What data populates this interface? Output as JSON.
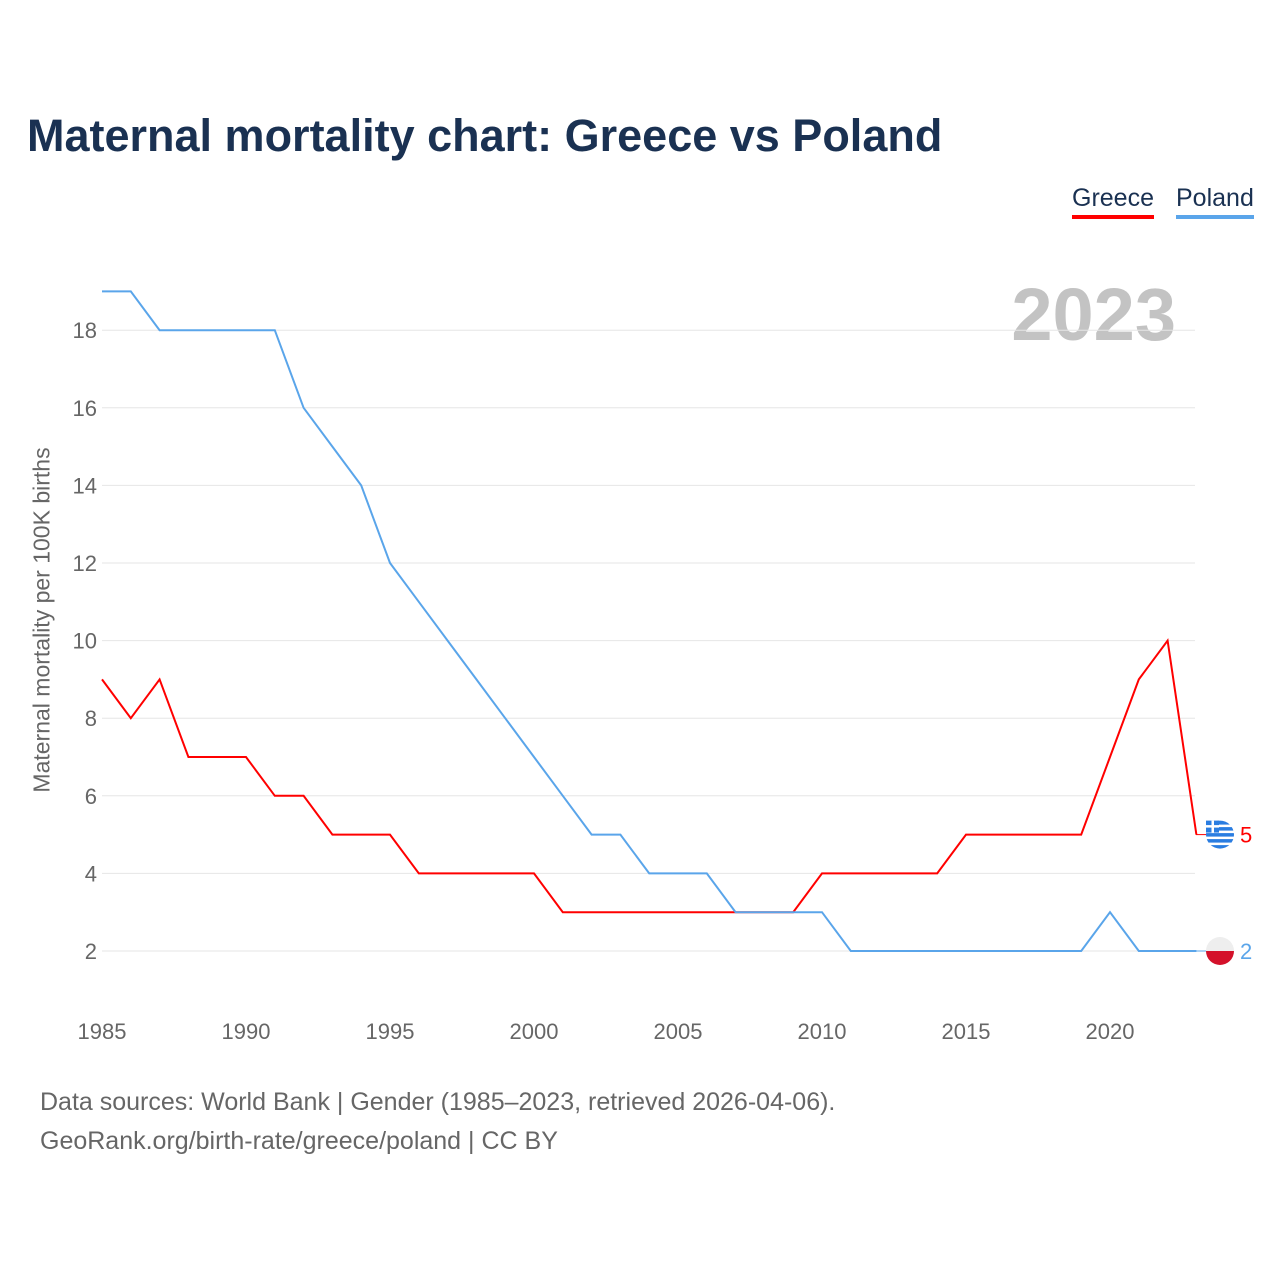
{
  "chart_data": {
    "type": "line",
    "title": "Maternal mortality chart: Greece vs Poland",
    "ylabel": "Maternal mortality per 100K births",
    "xlabel": "",
    "highlight_year": "2023",
    "x": [
      1985,
      1986,
      1987,
      1988,
      1989,
      1990,
      1991,
      1992,
      1993,
      1994,
      1995,
      1996,
      1997,
      1998,
      1999,
      2000,
      2001,
      2002,
      2003,
      2004,
      2005,
      2006,
      2007,
      2008,
      2009,
      2010,
      2011,
      2012,
      2013,
      2014,
      2015,
      2016,
      2017,
      2018,
      2019,
      2020,
      2021,
      2022,
      2023
    ],
    "series": [
      {
        "name": "Greece",
        "color": "#ff0000",
        "end_label": "5",
        "values": [
          9,
          8,
          9,
          7,
          7,
          7,
          6,
          6,
          5,
          5,
          5,
          4,
          4,
          4,
          4,
          4,
          3,
          3,
          3,
          3,
          3,
          3,
          3,
          3,
          3,
          4,
          4,
          4,
          4,
          4,
          5,
          5,
          5,
          5,
          5,
          7,
          9,
          10,
          5
        ]
      },
      {
        "name": "Poland",
        "color": "#5aa5ea",
        "end_label": "2",
        "values": [
          19,
          19,
          18,
          18,
          18,
          18,
          18,
          16,
          15,
          14,
          12,
          11,
          10,
          9,
          8,
          7,
          6,
          5,
          5,
          4,
          4,
          4,
          3,
          3,
          3,
          3,
          2,
          2,
          2,
          2,
          2,
          2,
          2,
          2,
          2,
          3,
          2,
          2,
          2
        ]
      }
    ],
    "xticks": [
      "1985",
      "1990",
      "1995",
      "2000",
      "2005",
      "2010",
      "2015",
      "2020"
    ],
    "yticks": [
      "2",
      "4",
      "6",
      "8",
      "10",
      "12",
      "14",
      "16",
      "18"
    ],
    "xlim": [
      1985,
      2023
    ],
    "ylim": [
      0,
      20
    ],
    "grid": true,
    "legend": "top-right"
  },
  "legend": {
    "greece": "Greece",
    "poland": "Poland"
  },
  "source": {
    "line1": "Data sources: World Bank | Gender (1985–2023, retrieved 2026-04-06).",
    "line2": "GeoRank.org/birth-rate/greece/poland | CC BY"
  }
}
